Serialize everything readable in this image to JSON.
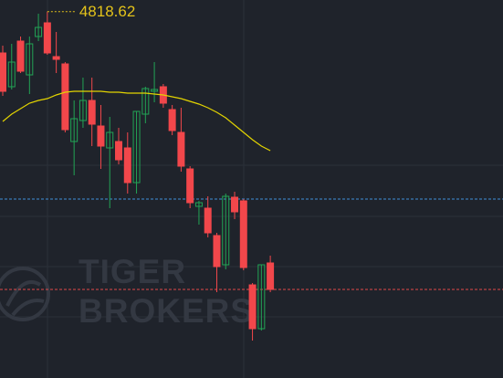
{
  "chart_data": {
    "type": "candlestick",
    "open": [
      4796,
      4777.5,
      4802.5,
      4784,
      4805,
      4812.5,
      4794,
      4790,
      4747.5,
      4759,
      4770,
      4756,
      4744,
      4747.5,
      4744,
      4725,
      4762.5,
      4775,
      4777.5,
      4765,
      4752.5,
      4732.5,
      4712,
      4711,
      4696,
      4680,
      4717,
      4715,
      4669,
      4645,
      4681
    ],
    "high": [
      4800,
      4801,
      4805,
      4805,
      4817.5,
      4818.62,
      4807.5,
      4791,
      4770,
      4782.5,
      4782.5,
      4767.5,
      4761,
      4755,
      4752.5,
      4764,
      4777.5,
      4791,
      4779,
      4767.5,
      4766,
      4734,
      4715,
      4717.5,
      4697.5,
      4719,
      4720,
      4716,
      4670,
      4680,
      4685
    ],
    "low": [
      4772.5,
      4776,
      4785,
      4773.5,
      4802.5,
      4795,
      4785,
      4752.5,
      4729,
      4755,
      4745,
      4732.5,
      4711,
      4735,
      4719,
      4719,
      4757.5,
      4769,
      4766,
      4751,
      4731,
      4711,
      4702,
      4695,
      4665,
      4677.5,
      4705,
      4677,
      4638.5,
      4644,
      4665
    ],
    "close": [
      4775,
      4791,
      4786,
      4801,
      4810,
      4796,
      4792.5,
      4754,
      4760,
      4770,
      4757,
      4745,
      4752.5,
      4737.5,
      4725,
      4764,
      4776.5,
      4776,
      4768.5,
      4753.5,
      4734,
      4714,
      4714,
      4697.5,
      4679,
      4717.5,
      4709,
      4678.5,
      4645,
      4680,
      4666.5
    ],
    "up_color": "#22a455",
    "down_color": "#f2474b",
    "ylim": [
      4618,
      4825
    ],
    "moving_average": {
      "color": "#e3d400",
      "values": [
        4758.5,
        4762.5,
        4765.5,
        4768.5,
        4770,
        4771,
        4773,
        4774.5,
        4775,
        4775,
        4775,
        4775,
        4774.5,
        4774.5,
        4774,
        4774,
        4774,
        4773.5,
        4773,
        4772,
        4771,
        4769.5,
        4768,
        4766,
        4763.5,
        4760.5,
        4756.5,
        4752.5,
        4748.5,
        4745,
        4742.5
      ]
    },
    "price_lines": [
      {
        "value": 4716,
        "color": "#3f8fd8"
      },
      {
        "value": 4666.5,
        "color": "#e24a4a"
      }
    ],
    "high_label": "4818.62",
    "high_label_color": "#e3c21a",
    "watermark": [
      "TIGER",
      "BROKERS"
    ]
  }
}
